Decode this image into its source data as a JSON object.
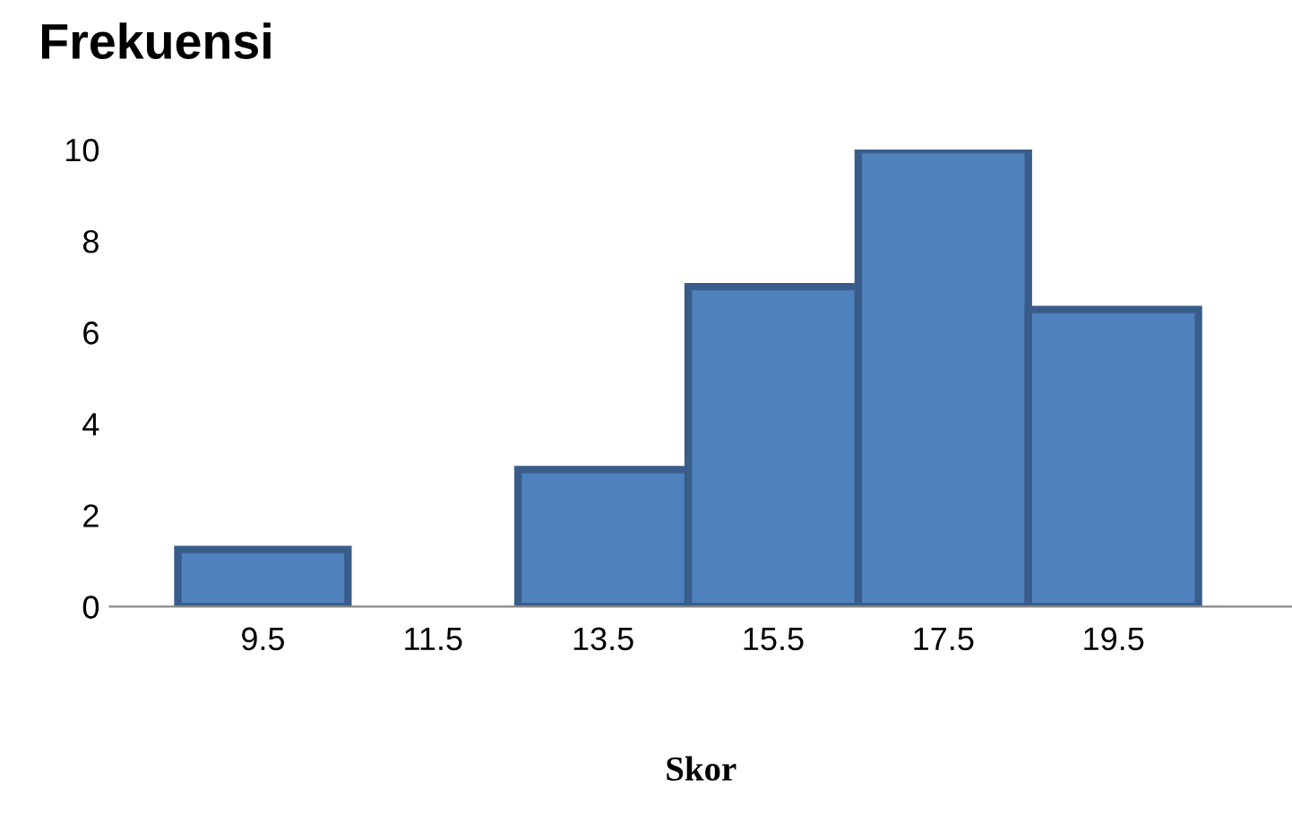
{
  "chart_data": {
    "type": "histogram",
    "title": "Frekuensi",
    "xlabel": "Skor",
    "bins": [
      8.5,
      10.5,
      12.5,
      14.5,
      16.5,
      18.5,
      20.5
    ],
    "values": [
      1.25,
      0,
      3,
      7,
      10,
      6.5
    ],
    "color": "#4f81bd",
    "xlim": [
      7.7,
      21.6
    ],
    "xticks": [
      9.5,
      11.5,
      13.5,
      15.5,
      17.5,
      19.5
    ],
    "ylim": [
      0,
      10
    ],
    "yticks": [
      0,
      2,
      4,
      6,
      8,
      10
    ],
    "grid": false
  }
}
